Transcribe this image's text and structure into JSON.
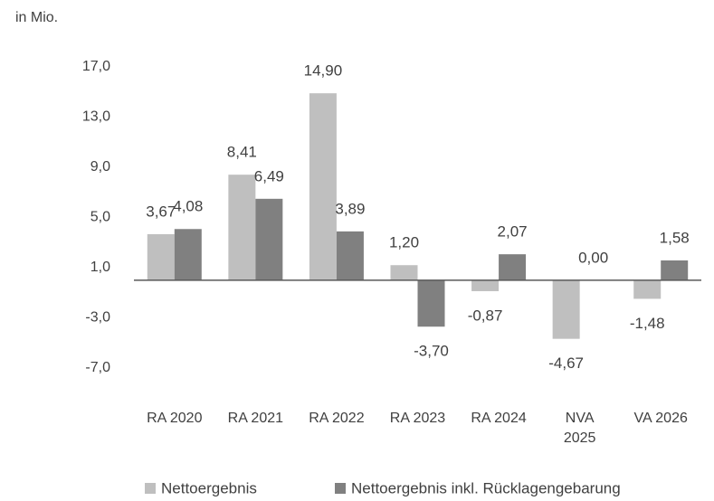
{
  "chart_data": {
    "type": "bar",
    "subtitle": "in Mio.",
    "categories": [
      "RA 2020",
      "RA 2021",
      "RA 2022",
      "RA 2023",
      "RA 2024",
      "NVA 2025",
      "VA 2026"
    ],
    "series": [
      {
        "name": "Nettoergebnis",
        "color": "#bfbfbf",
        "values": [
          3.67,
          8.41,
          14.9,
          1.2,
          -0.87,
          -4.67,
          -1.48
        ],
        "value_labels": [
          "3,67",
          "8,41",
          "14,90",
          "1,20",
          "-0,87",
          "-4,67",
          "-1,48"
        ]
      },
      {
        "name": "Nettoergebnis inkl. Rücklagengebarung",
        "color": "#808080",
        "values": [
          4.08,
          6.49,
          3.89,
          -3.7,
          2.07,
          0.0,
          1.58
        ],
        "value_labels": [
          "4,08",
          "6,49",
          "3,89",
          "-3,70",
          "2,07",
          "0,00",
          "1,58"
        ]
      }
    ],
    "ylim": [
      -7,
      17
    ],
    "yticks": [
      {
        "value": -7,
        "label": "-7,0"
      },
      {
        "value": -3,
        "label": "-3,0"
      },
      {
        "value": 1,
        "label": "1,0"
      },
      {
        "value": 5,
        "label": "5,0"
      },
      {
        "value": 9,
        "label": "9,0"
      },
      {
        "value": 13,
        "label": "13,0"
      },
      {
        "value": 17,
        "label": "17,0"
      }
    ],
    "grid": false
  }
}
